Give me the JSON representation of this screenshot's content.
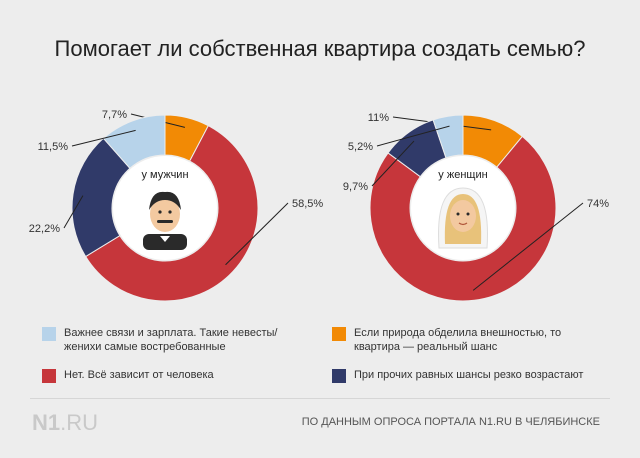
{
  "title": "Помогает ли собственная квартира создать семью?",
  "colors": {
    "light_blue": "#b7d3ea",
    "orange": "#f28a05",
    "red": "#c6363b",
    "navy": "#303a69"
  },
  "chart_data": [
    {
      "type": "pie",
      "center_label": "у мужчин",
      "center_icon": "groom-emoji",
      "slices": [
        {
          "category": "Если природа обделила внешностью, то квартира — реальный шанс",
          "value": 7.7,
          "label": "7,7%",
          "color": "#f28a05"
        },
        {
          "category": "Нет. Всё зависит от человека",
          "value": 58.5,
          "label": "58,5%",
          "color": "#c6363b"
        },
        {
          "category": "При прочих равных шансы резко возрастают",
          "value": 22.2,
          "label": "22,2%",
          "color": "#303a69"
        },
        {
          "category": "Важнее связи и зарплата. Такие невесты/ женихи самые востребованные",
          "value": 11.5,
          "label": "11,5%",
          "color": "#b7d3ea"
        }
      ]
    },
    {
      "type": "pie",
      "center_label": "у женщин",
      "center_icon": "bride-emoji",
      "slices": [
        {
          "category": "Если природа обделила внешностью, то квартира — реальный шанс",
          "value": 11,
          "label": "11%",
          "color": "#f28a05"
        },
        {
          "category": "Нет. Всё зависит от человека",
          "value": 74,
          "label": "74%",
          "color": "#c6363b"
        },
        {
          "category": "При прочих равных шансы резко возрастают",
          "value": 9.7,
          "label": "9,7%",
          "color": "#303a69"
        },
        {
          "category": "Важнее связи и зарплата. Такие невесты/ женихи самые востребованные",
          "value": 5.2,
          "label": "5,2%",
          "color": "#b7d3ea"
        }
      ]
    }
  ],
  "legend": [
    {
      "text": "Важнее связи и зарплата. Такие невесты/ женихи самые востребованные",
      "color": "#b7d3ea"
    },
    {
      "text": "Если природа обделила внешностью, то квартира — реальный шанс",
      "color": "#f28a05"
    },
    {
      "text": "Нет. Всё зависит от человека",
      "color": "#c6363b"
    },
    {
      "text": "При прочих равных шансы резко возрастают",
      "color": "#303a69"
    }
  ],
  "logo": {
    "brand": "N1",
    "domain": ".RU"
  },
  "source": "ПО ДАННЫМ ОПРОСА ПОРТАЛА N1.RU В ЧЕЛЯБИНСКЕ"
}
